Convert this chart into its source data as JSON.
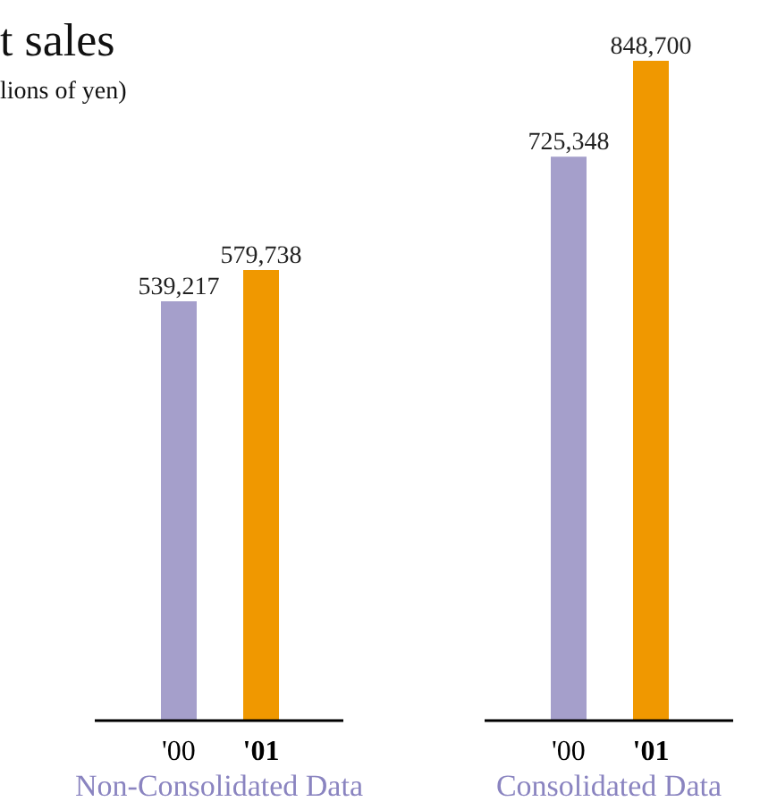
{
  "chart_data": [
    {
      "type": "bar",
      "title": "t sales",
      "subtitle": "lions of yen)",
      "xlabel": "Non-Consolidated Data",
      "categories": [
        "'00",
        "'01"
      ],
      "values": [
        539217,
        579738
      ],
      "value_labels": [
        "539,217",
        "579,738"
      ],
      "colors": [
        "#a59fcb",
        "#f09800"
      ]
    },
    {
      "type": "bar",
      "xlabel": "Consolidated Data",
      "categories": [
        "'00",
        "'01"
      ],
      "values": [
        725348,
        848700
      ],
      "value_labels": [
        "725,348",
        "848,700"
      ],
      "colors": [
        "#a59fcb",
        "#f09800"
      ]
    }
  ]
}
